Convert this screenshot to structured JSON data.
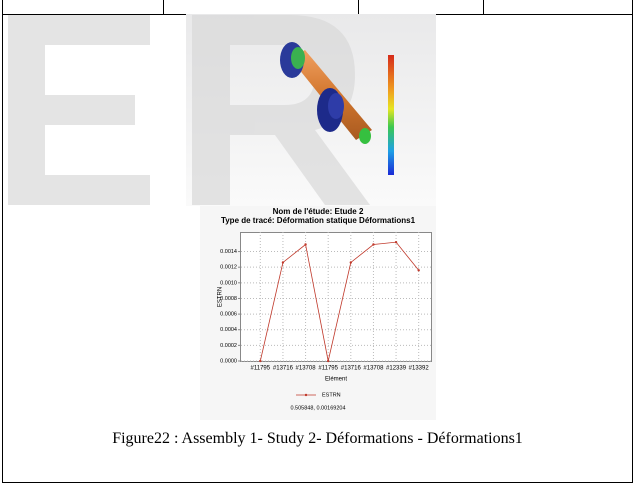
{
  "chart_data": {
    "type": "line",
    "title": "Nom de l'étude: Etude 2",
    "subtitle": "Type de tracé: Déformation statique Déformations1",
    "x_label": "Elément",
    "y_label": "ESTRN",
    "categories": [
      "#11795",
      "#13716",
      "#13708",
      "#11795",
      "#13716",
      "#13708",
      "#12339",
      "#13392"
    ],
    "series": [
      {
        "name": "ESTRN",
        "color": "#c0392b",
        "values": [
          0,
          0.00126,
          0.00149,
          0,
          0.00126,
          0.00149,
          0.00152,
          0.00116
        ]
      }
    ],
    "ylim": [
      0,
      0.00165
    ],
    "yticks": [
      {
        "value": 0,
        "label": "0.0000"
      },
      {
        "value": 0.0002,
        "label": "0.0002"
      },
      {
        "value": 0.0004,
        "label": "0.0004"
      },
      {
        "value": 0.0006,
        "label": "0.0006"
      },
      {
        "value": 0.0008,
        "label": "0.0008"
      },
      {
        "value": 0.001,
        "label": "0.0010"
      },
      {
        "value": 0.0012,
        "label": "0.0012"
      },
      {
        "value": 0.0014,
        "label": "0.0014"
      }
    ],
    "grid": true,
    "footer": "0.505848, 0.00169204"
  },
  "caption": "Figure22 : Assembly 1- Study 2- Déformations - Déformations1"
}
